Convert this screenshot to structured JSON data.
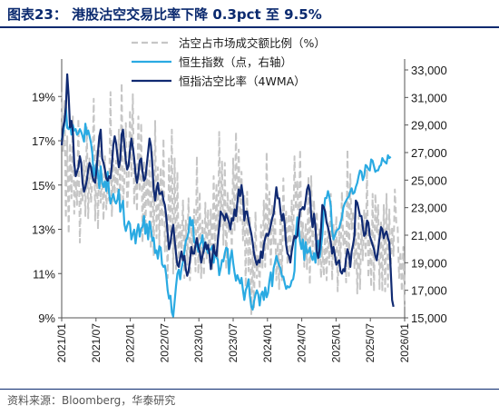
{
  "title": "图表23：  港股沽空交易比率下降 0.3pct 至 9.5%",
  "source": "资料来源：Bloomberg，华泰研究",
  "chart_data": {
    "type": "line",
    "title": "港股沽空交易比率下降 0.3pct 至 9.5%",
    "x_ticks": [
      "2021/01",
      "2021/07",
      "2022/01",
      "2022/07",
      "2023/01",
      "2023/07",
      "2024/01",
      "2024/07",
      "2025/01",
      "2025/07",
      "2026/01"
    ],
    "x_range": [
      "2021/01",
      "2026/01"
    ],
    "left_axis": {
      "ticks": [
        "9%",
        "11%",
        "13%",
        "15%",
        "17%",
        "19%"
      ],
      "ylim": [
        9,
        20.2
      ]
    },
    "right_axis": {
      "ticks": [
        "15,000",
        "17,000",
        "19,000",
        "21,000",
        "23,000",
        "25,000",
        "27,000",
        "29,000",
        "31,000",
        "33,000"
      ],
      "ylim": [
        15000,
        33000
      ]
    },
    "legend_position": "top-right",
    "series": [
      {
        "name": "沽空占市场成交额比例（%）",
        "axis": "left",
        "style": "dashed",
        "color": "#c6c6c6",
        "values": [
          19.2,
          16.5,
          18.8,
          13.5,
          17.2,
          12.8,
          16.9,
          14.4,
          18.1,
          13.7,
          15.2,
          14.1,
          18.0,
          12.4,
          14.9,
          14.3,
          16.1,
          13.6,
          17.6,
          13.5,
          16.2,
          14.2,
          15.2,
          18.9,
          13.4,
          16.6,
          13.0,
          17.1,
          14.2,
          15.5,
          13.4,
          16.3,
          13.9,
          15.2,
          14.3,
          19.2,
          13.6,
          16.2,
          14.6,
          16.1,
          14.7,
          17.5,
          14.0,
          19.6,
          14.1,
          15.2,
          17.8,
          13.9,
          15.2,
          18.4,
          15.4,
          19.1,
          14.1,
          16.0,
          13.8,
          18.1,
          14.7,
          17.8,
          12.4,
          16.1,
          12.8,
          15.8,
          14.0,
          16.2,
          12.1,
          16.5,
          11.8,
          17.9,
          12.6,
          15.8,
          12.3,
          15.8,
          13.1,
          17.1,
          12.0,
          13.7,
          10.8,
          16.2,
          12.8,
          17.5,
          11.0,
          16.2,
          11.2,
          15.6,
          11.4,
          13.2,
          12.1,
          14.3,
          10.8,
          13.4,
          11.4,
          14.4,
          10.7,
          13.1,
          11.8,
          13.9,
          11.1,
          16.3,
          11.0,
          14.7,
          10.8,
          13.4,
          10.9,
          14.2,
          11.6,
          13.9,
          11.5,
          13.9,
          11.1,
          15.4,
          12.2,
          15.1,
          11.6,
          17.4,
          13.1,
          16.1,
          12.3,
          16.0,
          11.2,
          14.7,
          12.8,
          14.3,
          12.0,
          16.2,
          12.9,
          17.4,
          13.3,
          16.6,
          13.4,
          15.6,
          12.5,
          14.5,
          10.4,
          14.7,
          11.1,
          13.6,
          9.1,
          12.0,
          9.4,
          13.8,
          10.8,
          11.8,
          10.3,
          13.2,
          11.2,
          14.3,
          11.3,
          16.5,
          12.1,
          14.7,
          11.3,
          14.1,
          12.3,
          13.8,
          10.7,
          12.4,
          10.3,
          14.0,
          10.7,
          15.3,
          12.5,
          13.8,
          11.4,
          13.7,
          11.9,
          14.3,
          12.3,
          16.3,
          13.9,
          15.2,
          12.7,
          16.6,
          12.2,
          13.3,
          11.3,
          13.3,
          11.2,
          15.4,
          10.5,
          15.4,
          11.9,
          14.3,
          12.0,
          13.8,
          11.4,
          13.1,
          10.8,
          12.2,
          10.9,
          12.9,
          10.7,
          13.3,
          11.4,
          14.6,
          10.7,
          13.2,
          11.5,
          13.6,
          10.2,
          12.9,
          11.5,
          14.7,
          12.3,
          12.9,
          10.6,
          16.6,
          10.9,
          15.5,
          13.0,
          13.8,
          11.2,
          13.1,
          10.1,
          13.6,
          10.3,
          13.2,
          11.6,
          13.9,
          11.8,
          15.7,
          10.8,
          13.1,
          10.4,
          14.6,
          10.2,
          14.6,
          12.8,
          14.1,
          10.3,
          13.4,
          10.2,
          14.1,
          10.2,
          14.6,
          10.4,
          13.9,
          11.1,
          13.1,
          11.8,
          14.8,
          13.3,
          13.1,
          10.8,
          12.0,
          10.2,
          12.2,
          9.5
        ]
      },
      {
        "name": "恒生指数（点，右轴）",
        "axis": "right",
        "style": "solid",
        "color": "#2aaae2",
        "values": [
          27900,
          28400,
          29100,
          30300,
          28800,
          28700,
          29000,
          28300,
          29000,
          28600,
          28700,
          28300,
          28400,
          28700,
          28500,
          28200,
          27800,
          29100,
          28300,
          28600,
          28200,
          27700,
          26900,
          25300,
          25800,
          26200,
          25400,
          24400,
          26000,
          24800,
          24500,
          24900,
          24200,
          25600,
          24100,
          23300,
          23700,
          24000,
          23500,
          23300,
          23600,
          24300,
          22700,
          23100,
          23500,
          21800,
          21300,
          21700,
          22000,
          21800,
          20700,
          21100,
          21400,
          20400,
          21300,
          21800,
          20900,
          21500,
          21600,
          22400,
          21100,
          21800,
          20700,
          22000,
          21500,
          20600,
          20800,
          19700,
          19900,
          19300,
          20200,
          20100,
          18900,
          18700,
          18800,
          18100,
          17000,
          16400,
          16600,
          15400,
          15100,
          16200,
          17300,
          18200,
          18500,
          17800,
          18600,
          19100,
          19800,
          20600,
          20800,
          21200,
          22300,
          21700,
          22100,
          20500,
          20400,
          20300,
          19800,
          20300,
          20500,
          21000,
          19800,
          20500,
          20000,
          19700,
          19900,
          20000,
          20200,
          19000,
          19700,
          19400,
          19200,
          18100,
          18600,
          19200,
          19100,
          19700,
          20100,
          20000,
          18200,
          19300,
          19900,
          19000,
          18300,
          17700,
          18100,
          17800,
          17500,
          17900,
          17000,
          16300,
          17000,
          17300,
          17800,
          16600,
          15800,
          15600,
          16200,
          16700,
          17000,
          16700,
          15900,
          16700,
          16900,
          16300,
          17200,
          16500,
          16800,
          17700,
          18300,
          17300,
          18600,
          19000,
          19500,
          19100,
          18800,
          18600,
          18000,
          18000,
          17500,
          17100,
          17300,
          17200,
          17300,
          17700,
          17800,
          18400,
          21100,
          22300,
          21500,
          20500,
          20000,
          20700,
          19200,
          20500,
          19700,
          19800,
          20100,
          19500,
          19200,
          19700,
          19000,
          20400,
          20600,
          19400,
          20100,
          21000,
          22800,
          23700,
          23700,
          24200,
          23800,
          23100,
          21300,
          20700,
          21000,
          21300,
          21400,
          21500,
          21900,
          22300,
          23000,
          23300,
          23500,
          23700,
          23800,
          24200,
          24400,
          24000,
          24100,
          24500,
          24800,
          25300,
          25700,
          25600,
          25000,
          25300,
          26100,
          26000,
          25800,
          25700,
          26500,
          26400,
          26000,
          25600,
          25700,
          25700,
          26000,
          26100,
          26600,
          26400,
          26300,
          26200,
          26800,
          26600,
          26700
        ]
      },
      {
        "name": "恒指沽空比率（4WMA）",
        "axis": "left",
        "style": "solid",
        "color": "#102a72",
        "values": [
          16.8,
          17.6,
          17.9,
          18.5,
          20.0,
          19.0,
          17.6,
          17.9,
          17.4,
          16.0,
          15.4,
          15.6,
          15.8,
          16.3,
          16.0,
          15.1,
          14.7,
          14.9,
          15.2,
          15.7,
          16.0,
          15.8,
          15.4,
          15.2,
          15.1,
          15.7,
          16.5,
          17.2,
          17.5,
          16.2,
          16.0,
          15.7,
          15.3,
          15.2,
          15.4,
          15.3,
          15.9,
          16.8,
          17.2,
          16.9,
          16.3,
          15.8,
          16.1,
          17.3,
          17.5,
          16.8,
          16.1,
          15.7,
          15.9,
          16.6,
          17.1,
          16.7,
          16.2,
          15.5,
          15.1,
          15.5,
          16.1,
          16.2,
          15.6,
          15.2,
          15.3,
          15.9,
          16.5,
          17.1,
          16.8,
          15.9,
          14.8,
          14.3,
          14.8,
          15.1,
          14.6,
          14.6,
          14.7,
          14.3,
          14.1,
          13.6,
          12.8,
          12.1,
          12.4,
          12.9,
          13.2,
          12.5,
          11.9,
          11.4,
          11.3,
          11.7,
          12.0,
          11.6,
          11.8,
          11.2,
          10.9,
          11.1,
          11.6,
          12.2,
          11.9,
          11.9,
          12.3,
          12.6,
          12.2,
          12.0,
          11.5,
          11.8,
          12.1,
          12.4,
          12.1,
          12.3,
          11.9,
          11.2,
          11.7,
          12.3,
          11.9,
          11.8,
          12.5,
          13.1,
          13.8,
          13.7,
          13.6,
          13.4,
          13.7,
          13.5,
          13.3,
          13.0,
          13.5,
          13.4,
          13.9,
          13.6,
          14.2,
          14.8,
          14.5,
          15.0,
          14.5,
          13.4,
          13.8,
          13.8,
          13.4,
          13.1,
          12.8,
          12.4,
          11.9,
          11.6,
          11.4,
          11.6,
          11.5,
          12.0,
          11.7,
          12.3,
          12.6,
          12.8,
          12.7,
          12.9,
          13.2,
          13.5,
          13.7,
          14.3,
          14.9,
          14.4,
          14.4,
          13.8,
          13.4,
          13.7,
          13.2,
          12.3,
          11.9,
          11.8,
          11.5,
          12.0,
          12.4,
          12.7,
          12.6,
          12.7,
          13.3,
          13.9,
          13.9,
          14.0,
          13.9,
          14.3,
          14.8,
          15.0,
          14.7,
          13.6,
          13.1,
          13.7,
          13.1,
          12.0,
          11.7,
          12.1,
          13.0,
          14.1,
          14.0,
          13.8,
          13.3,
          13.1,
          12.8,
          12.4,
          11.9,
          12.2,
          11.8,
          11.4,
          11.5,
          11.6,
          11.1,
          11.0,
          11.2,
          11.1,
          11.7,
          12.1,
          11.9,
          11.3,
          12.0,
          12.3,
          12.7,
          14.3,
          14.2,
          13.9,
          13.6,
          13.6,
          13.1,
          12.7,
          12.8,
          13.4,
          13.3,
          12.7,
          12.5,
          12.3,
          12.1,
          11.8,
          11.6,
          12.1,
          12.6,
          13.1,
          13.0,
          12.6,
          12.8,
          12.9,
          12.6,
          12.4,
          11.2,
          9.8,
          9.5
        ]
      }
    ]
  }
}
